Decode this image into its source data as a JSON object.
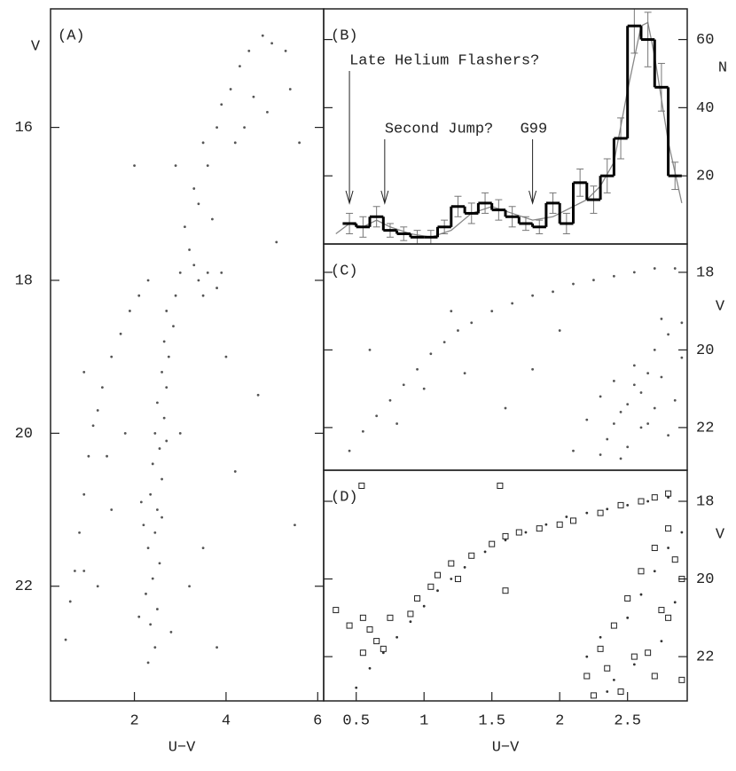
{
  "chart_data": [
    {
      "type": "scatter",
      "panel_label": "(A)",
      "y_label": "V",
      "x_label": "U−V",
      "y_axis_side": "left",
      "xlim": [
        0.17,
        6.13
      ],
      "ylim": [
        23.5,
        14.45
      ],
      "xticks": [
        2,
        4,
        6
      ],
      "yticks": [
        16,
        18,
        20,
        22
      ],
      "series": [
        {
          "marker": "dot",
          "color": "#555555",
          "x": [
            2.3,
            2.45,
            2.35,
            2.5,
            2.25,
            2.4,
            2.55,
            2.3,
            2.45,
            2.2,
            2.5,
            2.35,
            2.6,
            2.4,
            2.55,
            2.45,
            2.65,
            2.5,
            2.7,
            2.6,
            2.75,
            2.65,
            2.85,
            2.7,
            2.9,
            2.8,
            2.1,
            2.6,
            2.15,
            2.7,
            3.0,
            3.2,
            3.1,
            3.4,
            3.3,
            3.6,
            3.5,
            3.8,
            3.9,
            4.1,
            4.3,
            4.5,
            4.8,
            5.0,
            5.3,
            4.6,
            4.2,
            3.7,
            3.4,
            3.6,
            3.8,
            3.5,
            3.3,
            3.9,
            4.4,
            4.9,
            5.4,
            5.6,
            0.5,
            0.6,
            0.7,
            0.8,
            0.9,
            1.0,
            1.1,
            1.3,
            1.5,
            1.7,
            1.9,
            2.1,
            2.3,
            1.2,
            1.4,
            0.9,
            1.5,
            3.5,
            4.2,
            4.7,
            1.2,
            3.8,
            5.1,
            2.0,
            3.0,
            3.2,
            1.8,
            4.0,
            2.9,
            5.5,
            0.9
          ],
          "values": [
            23.0,
            22.8,
            22.5,
            22.3,
            22.1,
            21.9,
            21.7,
            21.5,
            21.3,
            21.2,
            21.0,
            20.8,
            20.6,
            20.4,
            20.2,
            20.0,
            19.8,
            19.6,
            19.4,
            19.2,
            19.0,
            18.8,
            18.6,
            18.4,
            18.2,
            22.6,
            22.4,
            21.1,
            20.9,
            20.1,
            17.9,
            17.6,
            17.3,
            17.0,
            16.8,
            16.5,
            16.2,
            16.0,
            15.7,
            15.5,
            15.2,
            15.0,
            14.8,
            14.9,
            15.0,
            15.6,
            16.2,
            17.2,
            18.0,
            17.9,
            18.1,
            18.2,
            17.8,
            17.9,
            16.0,
            15.8,
            15.5,
            16.2,
            22.7,
            22.2,
            21.8,
            21.3,
            20.8,
            20.3,
            19.9,
            19.4,
            19.0,
            18.7,
            18.4,
            18.2,
            18.0,
            19.7,
            20.3,
            21.8,
            21.0,
            21.5,
            20.5,
            19.5,
            22.0,
            22.8,
            17.5,
            16.5,
            20.0,
            22.0,
            20.0,
            19.0,
            16.5,
            21.2,
            19.2
          ]
        }
      ]
    },
    {
      "type": "histogram",
      "panel_label": "(B)",
      "y_label": "N",
      "y_axis_side": "right",
      "xlim": [
        0.26,
        2.94
      ],
      "ylim": [
        0,
        69
      ],
      "yticks": [
        20,
        40,
        60
      ],
      "color": "#000000",
      "bins": [
        0.4,
        0.5,
        0.6,
        0.7,
        0.8,
        0.9,
        1.0,
        1.1,
        1.2,
        1.3,
        1.4,
        1.5,
        1.6,
        1.7,
        1.8,
        1.9,
        2.0,
        2.1,
        2.2,
        2.3,
        2.4,
        2.5,
        2.6,
        2.7,
        2.8,
        2.9
      ],
      "values": [
        6,
        5,
        8,
        4,
        3,
        2,
        2,
        5,
        11,
        9,
        12,
        10,
        8,
        6,
        5,
        12,
        6,
        18,
        13,
        20,
        31,
        64,
        60,
        46,
        20
      ],
      "errors": [
        3,
        3,
        3,
        2,
        2,
        2,
        2,
        2,
        3,
        3,
        3,
        3,
        3,
        2,
        2,
        3,
        3,
        4,
        4,
        5,
        6,
        8,
        8,
        7,
        4
      ],
      "curve": {
        "color": "#888888",
        "x": [
          0.35,
          0.45,
          0.55,
          0.65,
          0.75,
          0.9,
          1.05,
          1.2,
          1.35,
          1.5,
          1.65,
          1.8,
          1.95,
          2.1,
          2.2,
          2.3,
          2.4,
          2.5,
          2.6,
          2.65,
          2.7,
          2.8,
          2.9
        ],
        "values": [
          3,
          6,
          5,
          7,
          5,
          3,
          2,
          4,
          9,
          11,
          9,
          7,
          8,
          11,
          13,
          17,
          24,
          45,
          64,
          65,
          55,
          30,
          12
        ]
      },
      "annotations": [
        {
          "text": "Late Helium Flashers?",
          "x": 0.45
        },
        {
          "text": "Second Jump?",
          "x": 0.71
        },
        {
          "text": "G99",
          "x": 1.8
        }
      ]
    },
    {
      "type": "scatter",
      "panel_label": "(C)",
      "y_label": "V",
      "y_axis_side": "right",
      "xlim": [
        0.26,
        2.94
      ],
      "ylim": [
        23.1,
        17.27
      ],
      "yticks": [
        18,
        20,
        22
      ],
      "series": [
        {
          "marker": "dot",
          "color": "#555555",
          "x": [
            0.45,
            0.55,
            0.65,
            0.75,
            0.85,
            0.95,
            1.05,
            1.15,
            1.25,
            1.35,
            1.5,
            1.65,
            1.8,
            1.95,
            2.1,
            2.25,
            2.4,
            2.55,
            2.7,
            2.85,
            1.0,
            1.3,
            0.8,
            2.2,
            2.3,
            2.35,
            2.4,
            2.45,
            2.5,
            2.55,
            2.6,
            2.65,
            2.7,
            2.75,
            2.8,
            2.85,
            2.9,
            2.3,
            2.5,
            2.6,
            2.7,
            2.8,
            2.4,
            2.55,
            2.65,
            2.9,
            2.75,
            2.1,
            2.45,
            1.2,
            1.8,
            0.6,
            1.6,
            2.0
          ],
          "values": [
            22.6,
            22.1,
            21.7,
            21.3,
            20.9,
            20.5,
            20.1,
            19.8,
            19.5,
            19.3,
            19.0,
            18.8,
            18.6,
            18.5,
            18.3,
            18.2,
            18.1,
            18.0,
            17.9,
            17.9,
            21.0,
            20.6,
            21.9,
            21.8,
            21.2,
            22.3,
            20.8,
            21.6,
            22.5,
            20.4,
            21.1,
            21.9,
            20.0,
            20.7,
            19.6,
            21.3,
            20.2,
            22.7,
            21.4,
            22.0,
            21.5,
            22.2,
            21.9,
            20.9,
            20.6,
            19.3,
            19.2,
            22.6,
            22.8,
            19.0,
            20.5,
            20.0,
            21.5,
            19.5
          ]
        }
      ]
    },
    {
      "type": "scatter",
      "panel_label": "(D)",
      "y_label": "V",
      "x_label": "U−V",
      "y_axis_side": "right",
      "xlim": [
        0.26,
        2.94
      ],
      "ylim": [
        23.14,
        17.2
      ],
      "xticks": [
        0.5,
        1,
        1.5,
        2,
        2.5
      ],
      "yticks": [
        18,
        20,
        22
      ],
      "series": [
        {
          "marker": "dot",
          "color": "#333333",
          "x": [
            0.5,
            0.6,
            0.7,
            0.8,
            0.9,
            1.0,
            1.1,
            1.2,
            1.3,
            1.45,
            1.6,
            1.75,
            1.9,
            2.05,
            2.2,
            2.35,
            2.5,
            2.65,
            2.8,
            2.2,
            2.3,
            2.4,
            2.5,
            2.6,
            2.7,
            2.8,
            2.9,
            2.35,
            2.55,
            2.75,
            2.85
          ],
          "values": [
            22.8,
            22.3,
            21.9,
            21.5,
            21.1,
            20.7,
            20.3,
            20.0,
            19.7,
            19.3,
            19.0,
            18.8,
            18.6,
            18.4,
            18.3,
            18.2,
            18.1,
            18.0,
            17.9,
            22.0,
            21.5,
            22.6,
            21.0,
            20.4,
            19.8,
            19.2,
            18.8,
            22.9,
            22.2,
            21.6,
            20.6
          ]
        },
        {
          "marker": "square",
          "color": "#222222",
          "x": [
            0.35,
            0.45,
            0.55,
            0.6,
            0.65,
            0.7,
            0.55,
            0.75,
            0.9,
            0.95,
            1.05,
            1.1,
            1.2,
            1.35,
            1.5,
            1.6,
            1.7,
            1.85,
            2.0,
            2.1,
            2.3,
            2.45,
            2.6,
            2.7,
            2.8,
            1.25,
            1.56,
            0.54,
            1.6,
            2.2,
            2.3,
            2.4,
            2.5,
            2.6,
            2.7,
            2.8,
            2.85,
            2.75,
            2.65,
            2.9,
            2.45,
            2.25,
            2.55,
            2.35,
            2.8,
            2.9,
            2.7
          ],
          "values": [
            20.8,
            21.2,
            21.0,
            21.3,
            21.6,
            21.8,
            21.9,
            21.0,
            20.9,
            20.5,
            20.2,
            19.9,
            19.6,
            19.4,
            19.1,
            18.9,
            18.8,
            18.7,
            18.6,
            18.5,
            18.3,
            18.1,
            18.0,
            17.9,
            17.8,
            20.0,
            17.6,
            17.6,
            20.3,
            22.5,
            21.8,
            21.2,
            20.5,
            19.8,
            19.2,
            18.7,
            19.5,
            20.8,
            21.9,
            22.6,
            22.9,
            23.0,
            22.0,
            22.3,
            21.0,
            20.0,
            22.5
          ]
        }
      ]
    }
  ]
}
